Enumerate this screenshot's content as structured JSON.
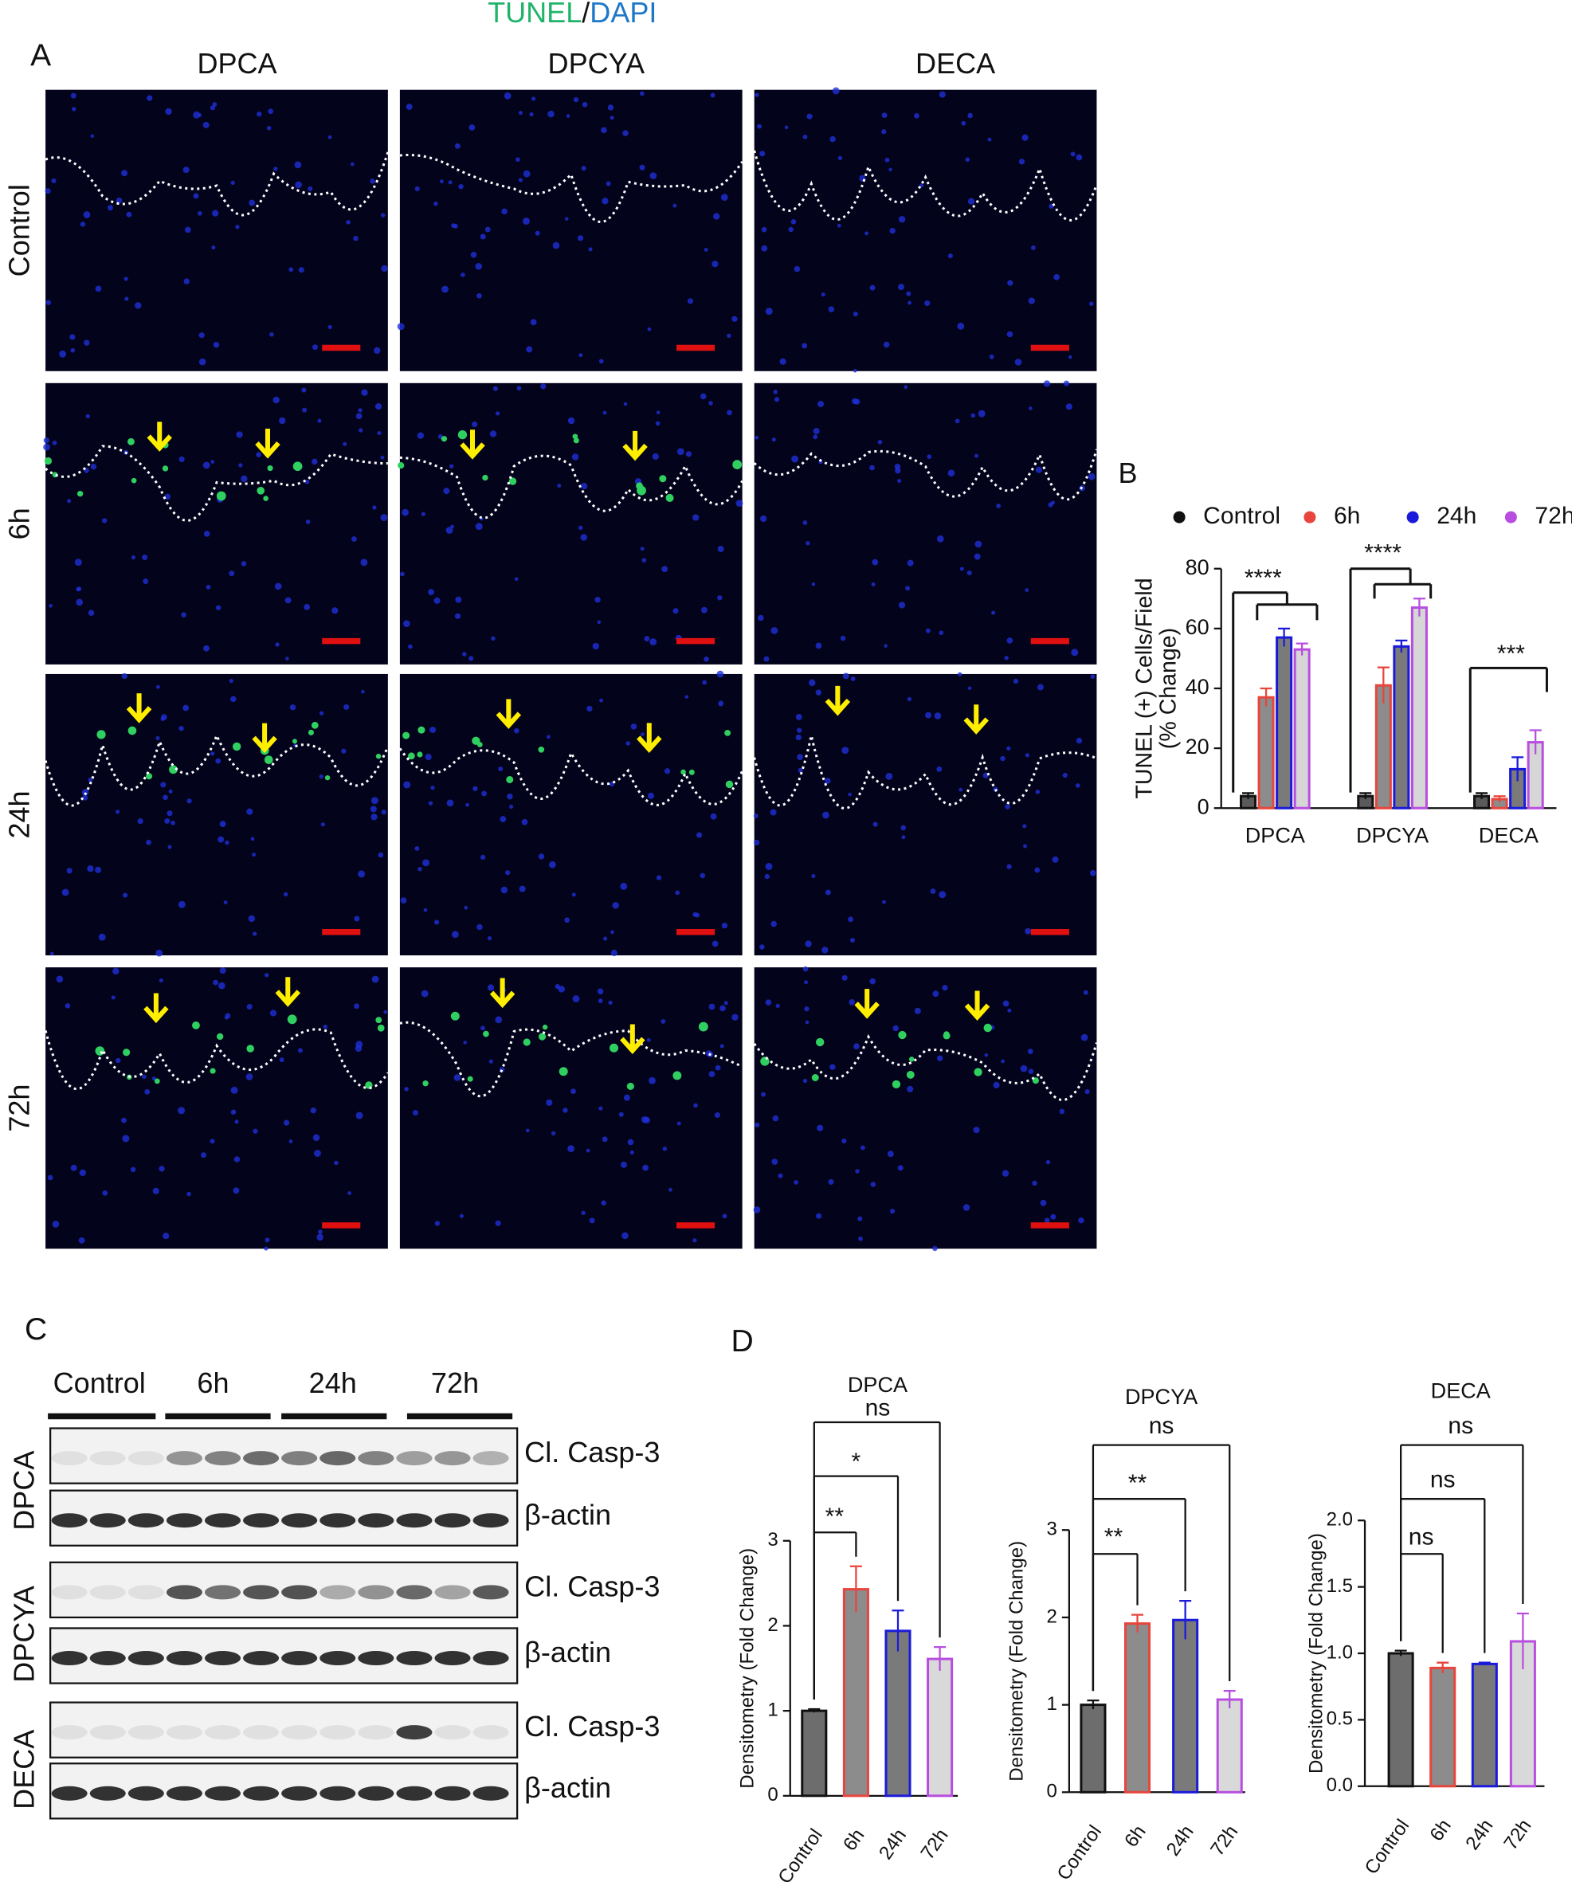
{
  "panel_a": {
    "label": "A",
    "stain": [
      "TUNEL",
      "/",
      "DAPI"
    ],
    "columns": [
      "DPCA",
      "DPCYA",
      "DECA"
    ],
    "rows": [
      "Control",
      "6h",
      "24h",
      "72h"
    ]
  },
  "panel_b_label": "B",
  "panel_c": {
    "label": "C",
    "lanes": [
      "Control",
      "6h",
      "24h",
      "72h"
    ],
    "blots": [
      {
        "group": "DPCA",
        "bands": [
          "Cl. Casp-3",
          "β-actin"
        ]
      },
      {
        "group": "DPCYA",
        "bands": [
          "Cl. Casp-3",
          "β-actin"
        ]
      },
      {
        "group": "DECA",
        "bands": [
          "Cl. Casp-3",
          "β-actin"
        ]
      }
    ]
  },
  "panel_d_label": "D",
  "chart_data": [
    {
      "type": "bar",
      "categories": [
        "DPCA",
        "DPCYA",
        "DECA"
      ],
      "series": [
        {
          "name": "Control",
          "color": "#111111",
          "fill": "#5a5a5a",
          "values": [
            4,
            4,
            4
          ],
          "errors": [
            1,
            1,
            1
          ]
        },
        {
          "name": "6h",
          "color": "#e8453c",
          "fill": "#8c8c8c",
          "values": [
            37,
            41,
            3
          ],
          "errors": [
            3,
            6,
            1
          ]
        },
        {
          "name": "24h",
          "color": "#1a1adb",
          "fill": "#7a7a7a",
          "values": [
            57,
            54,
            13
          ],
          "errors": [
            3,
            2,
            4
          ]
        },
        {
          "name": "72h",
          "color": "#b84ee0",
          "fill": "#d6d6d6",
          "values": [
            53,
            67,
            22
          ],
          "errors": [
            2,
            3,
            4
          ]
        }
      ],
      "ylim": [
        0,
        80
      ],
      "yticks": [
        0,
        20,
        40,
        60,
        80
      ],
      "y_label": [
        "TUNEL (+) Cells/Field",
        "(% Change)"
      ],
      "annotations": [
        "****",
        "****",
        "***"
      ]
    },
    {
      "type": "bar",
      "title": "DPCA",
      "categories": [
        "Control",
        "6h",
        "24h",
        "72h"
      ],
      "values": [
        1.0,
        2.43,
        1.94,
        1.61
      ],
      "errors": [
        0.02,
        0.27,
        0.24,
        0.14
      ],
      "colors": [
        "#111111",
        "#e8453c",
        "#1a1adb",
        "#b84ee0"
      ],
      "fills": [
        "#6d6d6d",
        "#8c8c8c",
        "#7a7a7a",
        "#d9d9d9"
      ],
      "ylim": [
        0,
        3
      ],
      "yticks": [
        0,
        1,
        2,
        3
      ],
      "y_label": "Densitometry (Fold Change)",
      "annotations": [
        "**",
        "*",
        "ns"
      ]
    },
    {
      "type": "bar",
      "title": "DPCYA",
      "categories": [
        "Control",
        "6h",
        "24h",
        "72h"
      ],
      "values": [
        1.0,
        1.93,
        1.97,
        1.06
      ],
      "errors": [
        0.05,
        0.1,
        0.22,
        0.1
      ],
      "colors": [
        "#111111",
        "#e8453c",
        "#1a1adb",
        "#b84ee0"
      ],
      "fills": [
        "#6d6d6d",
        "#8c8c8c",
        "#7a7a7a",
        "#d9d9d9"
      ],
      "ylim": [
        0,
        3
      ],
      "yticks": [
        0,
        1,
        2,
        3
      ],
      "y_label": "Densitometry (Fold Change)",
      "annotations": [
        "**",
        "**",
        "ns"
      ]
    },
    {
      "type": "bar",
      "title": "DECA",
      "categories": [
        "Control",
        "6h",
        "24h",
        "72h"
      ],
      "values": [
        1.0,
        0.89,
        0.92,
        1.09
      ],
      "errors": [
        0.02,
        0.04,
        0.01,
        0.21
      ],
      "colors": [
        "#111111",
        "#e8453c",
        "#1a1adb",
        "#b84ee0"
      ],
      "fills": [
        "#6d6d6d",
        "#8c8c8c",
        "#7a7a7a",
        "#d9d9d9"
      ],
      "ylim": [
        0,
        2
      ],
      "yticks": [
        {
          "value": 0,
          "label": "0.0"
        },
        {
          "value": 0.5,
          "label": "0.5"
        },
        {
          "value": 1,
          "label": "1.0"
        },
        {
          "value": 1.5,
          "label": "1.5"
        },
        {
          "value": 2,
          "label": "2.0"
        }
      ],
      "y_label": "Densitometry (Fold Change)",
      "annotations": [
        "ns",
        "ns",
        "ns"
      ]
    }
  ]
}
